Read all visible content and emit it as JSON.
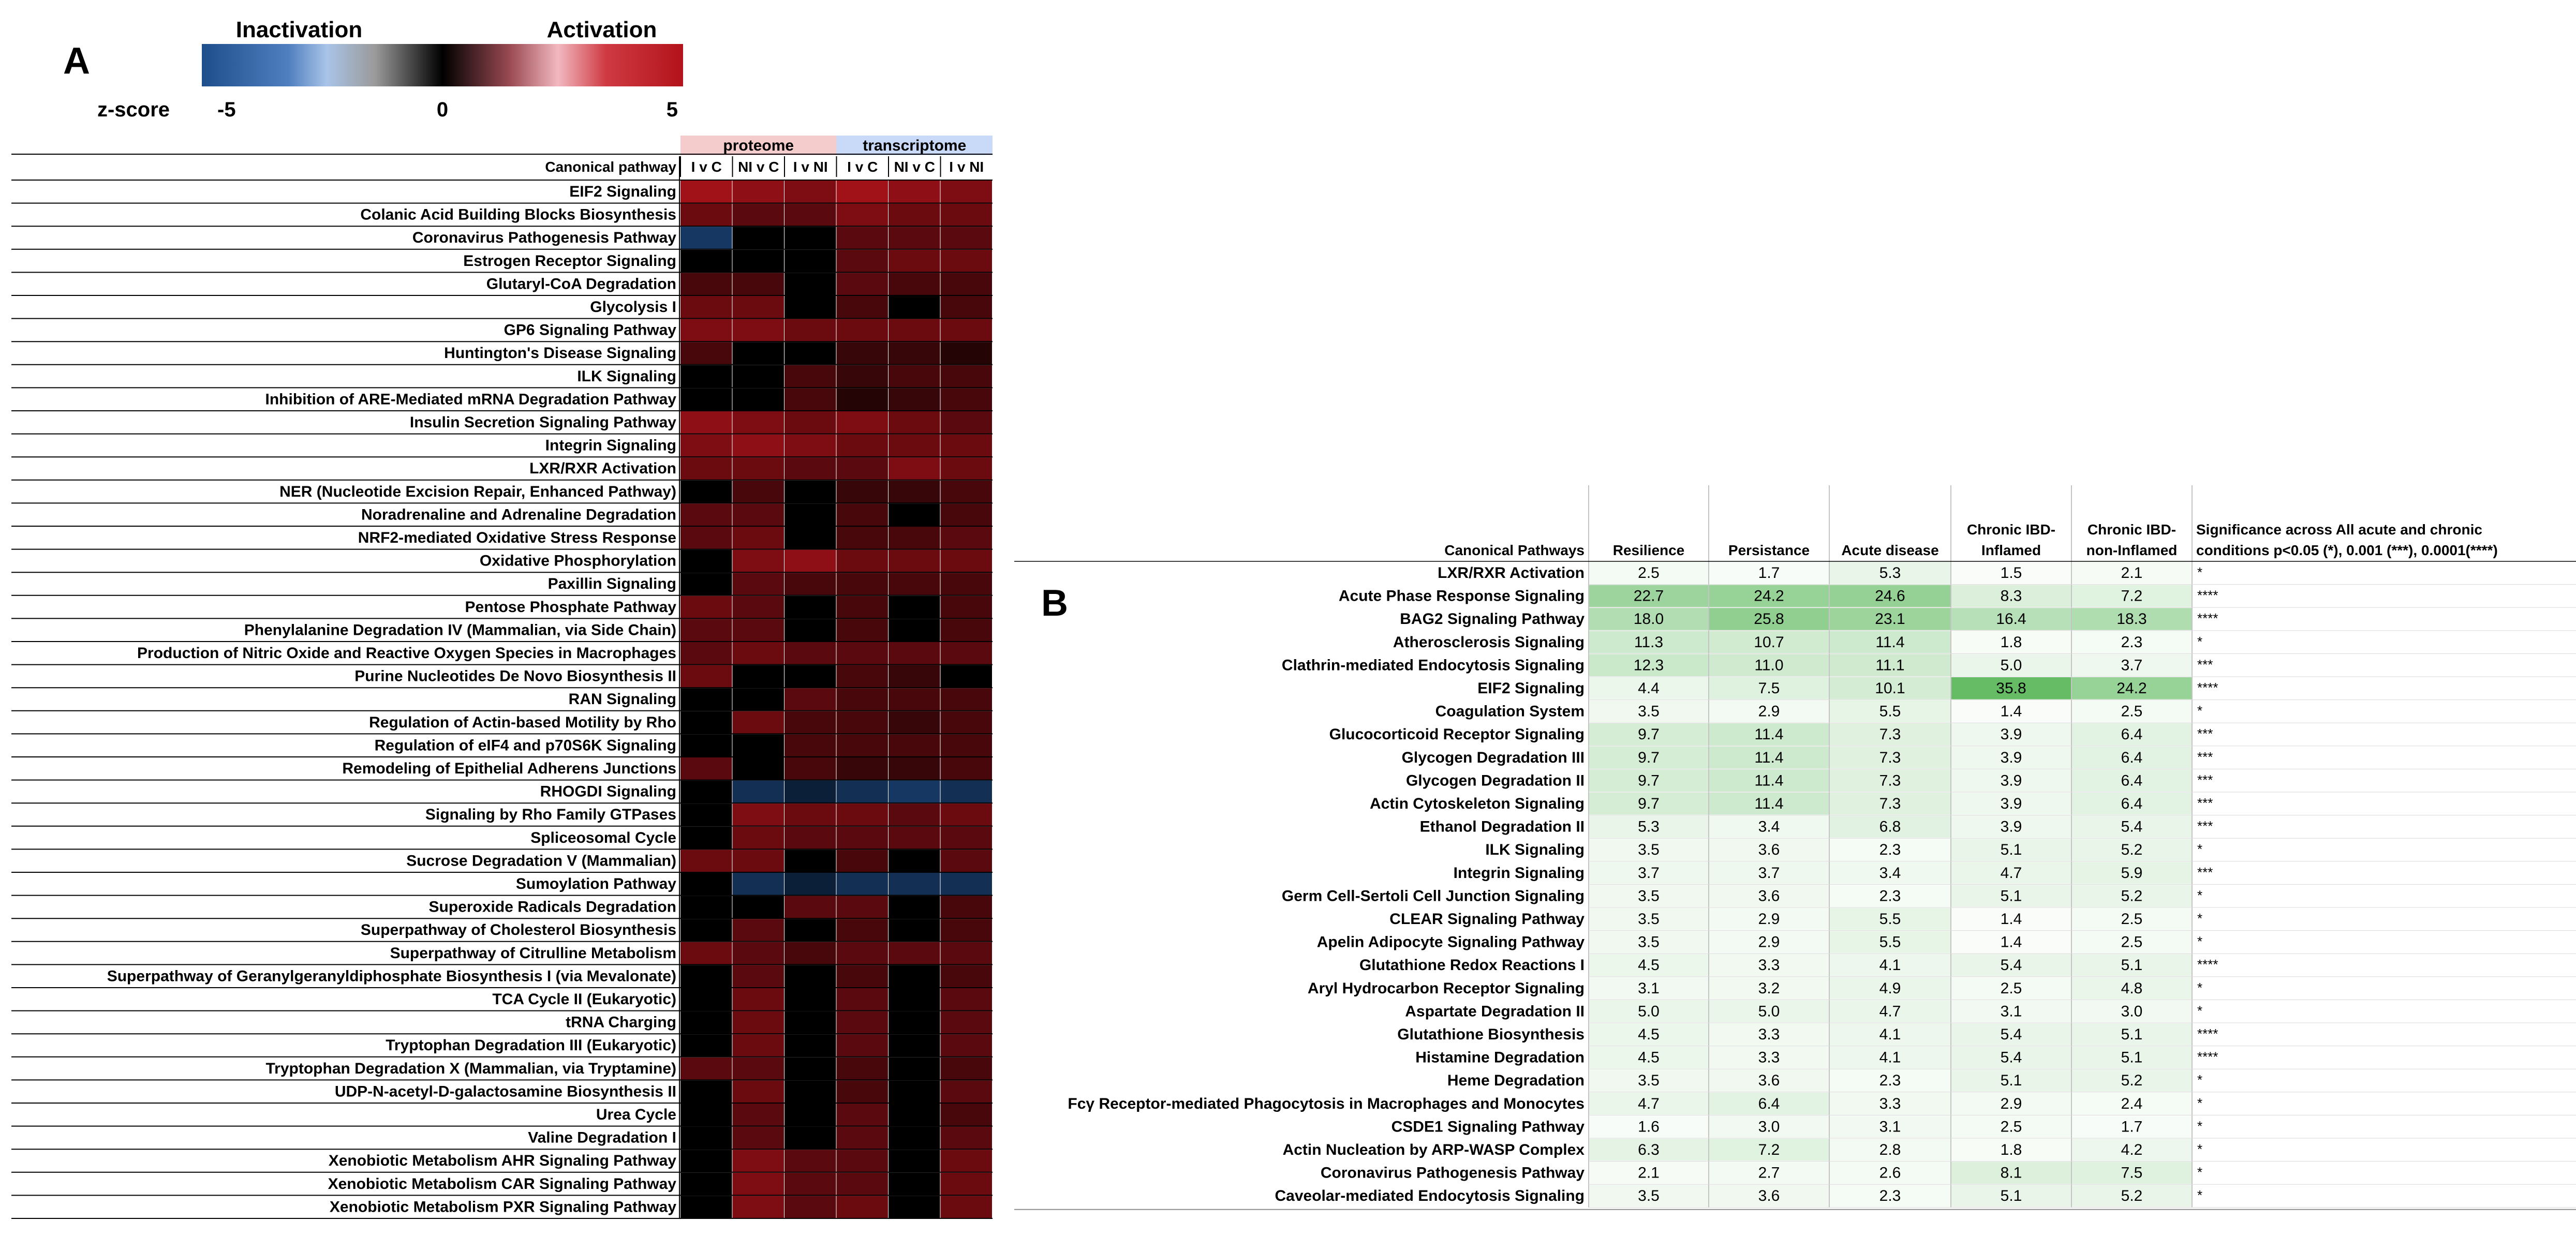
{
  "chart_data": [
    {
      "type": "heatmap",
      "panel_label": "A",
      "legend": {
        "left_label": "Inactivation",
        "right_label": "Activation",
        "scale_title": "z-score",
        "ticks": [
          "-5",
          "0",
          "5"
        ],
        "range": [
          -5,
          5
        ],
        "colors": {
          "low": "#1f4e8c",
          "mid": "#000000",
          "high": "#b3131b"
        }
      },
      "row_header": "Canonical pathway",
      "groups": [
        {
          "name": "proteome",
          "color": "#f4cccc",
          "columns": [
            "I v C",
            "NI v C",
            "I v NI"
          ]
        },
        {
          "name": "transcriptome",
          "color": "#c9daf8",
          "columns": [
            "I v C",
            "NI v C",
            "I v NI"
          ]
        }
      ],
      "rows": [
        {
          "pathway": "EIF2 Signaling",
          "z": [
            4.5,
            4,
            3.5,
            4.5,
            4,
            3.5
          ]
        },
        {
          "pathway": "Colanic Acid Building Blocks Biosynthesis",
          "z": [
            3,
            2.5,
            2.5,
            3.5,
            3,
            3
          ]
        },
        {
          "pathway": "Coronavirus Pathogenesis Pathway",
          "z": [
            -3.5,
            0,
            0,
            2.5,
            2.5,
            2.5
          ]
        },
        {
          "pathway": "Estrogen Receptor Signaling",
          "z": [
            0,
            0,
            0,
            2.5,
            3,
            3
          ]
        },
        {
          "pathway": "Glutaryl-CoA Degradation",
          "z": [
            2,
            2,
            0,
            2.5,
            2,
            2
          ]
        },
        {
          "pathway": "Glycolysis I",
          "z": [
            3,
            3,
            0,
            2,
            0,
            2
          ]
        },
        {
          "pathway": "GP6 Signaling Pathway",
          "z": [
            3.5,
            3.5,
            3,
            3,
            3,
            3
          ]
        },
        {
          "pathway": "Huntington's Disease Signaling",
          "z": [
            2,
            0,
            0,
            1.5,
            1.5,
            1
          ]
        },
        {
          "pathway": "ILK Signaling",
          "z": [
            0,
            0,
            2,
            1.5,
            2,
            2
          ]
        },
        {
          "pathway": "Inhibition of ARE-Mediated mRNA Degradation Pathway",
          "z": [
            0,
            0,
            2,
            1,
            1.5,
            2
          ]
        },
        {
          "pathway": "Insulin Secretion Signaling Pathway",
          "z": [
            4,
            3.5,
            3,
            3.5,
            3,
            2.5
          ]
        },
        {
          "pathway": "Integrin Signaling",
          "z": [
            3.5,
            4,
            3.5,
            3,
            3,
            3
          ]
        },
        {
          "pathway": "LXR/RXR Activation",
          "z": [
            3,
            3,
            2.5,
            2.5,
            3.5,
            3
          ]
        },
        {
          "pathway": "NER (Nucleotide Excision Repair, Enhanced Pathway)",
          "z": [
            0,
            2,
            0,
            1.5,
            1.5,
            2
          ]
        },
        {
          "pathway": "Noradrenaline and Adrenaline Degradation",
          "z": [
            2.5,
            2.5,
            0,
            2,
            0,
            2
          ]
        },
        {
          "pathway": "NRF2-mediated Oxidative Stress Response",
          "z": [
            2.5,
            3,
            0,
            2,
            2,
            2.5
          ]
        },
        {
          "pathway": "Oxidative Phosphorylation",
          "z": [
            0,
            3.5,
            4,
            3,
            3,
            3
          ]
        },
        {
          "pathway": "Paxillin Signaling",
          "z": [
            0,
            2.5,
            2,
            2,
            2,
            2
          ]
        },
        {
          "pathway": "Pentose Phosphate Pathway",
          "z": [
            3,
            2.5,
            0,
            2,
            0,
            2
          ]
        },
        {
          "pathway": "Phenylalanine Degradation IV (Mammalian, via Side Chain)",
          "z": [
            2.5,
            2.5,
            0,
            2,
            0,
            2
          ]
        },
        {
          "pathway": "Production of Nitric Oxide and Reactive Oxygen Species in Macrophages",
          "z": [
            2.5,
            3,
            2.5,
            2.5,
            2.5,
            2.5
          ]
        },
        {
          "pathway": "Purine Nucleotides De Novo Biosynthesis II",
          "z": [
            3,
            0,
            0,
            2,
            1.5,
            0
          ]
        },
        {
          "pathway": "RAN Signaling",
          "z": [
            0,
            0,
            2.5,
            2,
            2,
            2
          ]
        },
        {
          "pathway": "Regulation of Actin-based Motility by Rho",
          "z": [
            0,
            3,
            2,
            2,
            1.5,
            2
          ]
        },
        {
          "pathway": "Regulation of eIF4 and p70S6K Signaling",
          "z": [
            0,
            0,
            2,
            2,
            2,
            2
          ]
        },
        {
          "pathway": "Remodeling of Epithelial Adherens Junctions",
          "z": [
            2.5,
            0,
            2,
            1.5,
            1.5,
            2
          ]
        },
        {
          "pathway": "RHOGDI Signaling",
          "z": [
            0,
            -3,
            -2,
            -3,
            -3.5,
            -3
          ]
        },
        {
          "pathway": "Signaling by Rho Family GTPases",
          "z": [
            0,
            3.5,
            3,
            3,
            2.5,
            3
          ]
        },
        {
          "pathway": "Spliceosomal Cycle",
          "z": [
            0,
            3,
            2.5,
            2.5,
            2.5,
            2.5
          ]
        },
        {
          "pathway": "Sucrose Degradation V (Mammalian)",
          "z": [
            3,
            3,
            0,
            2,
            0,
            2.5
          ]
        },
        {
          "pathway": "Sumoylation Pathway",
          "z": [
            0,
            -3,
            -2,
            -3,
            -3,
            -3
          ]
        },
        {
          "pathway": "Superoxide Radicals Degradation",
          "z": [
            0,
            0,
            2.5,
            2.5,
            0,
            2
          ]
        },
        {
          "pathway": "Superpathway of Cholesterol Biosynthesis",
          "z": [
            0,
            2.5,
            0,
            2,
            0,
            2
          ]
        },
        {
          "pathway": "Superpathway of Citrulline Metabolism",
          "z": [
            3,
            2.5,
            2,
            2.5,
            2.5,
            2.5
          ]
        },
        {
          "pathway": "Superpathway of Geranylgeranyldiphosphate Biosynthesis I (via Mevalonate)",
          "z": [
            0,
            2.5,
            0,
            2,
            0,
            2
          ]
        },
        {
          "pathway": "TCA Cycle II (Eukaryotic)",
          "z": [
            0,
            3,
            0,
            2.5,
            0,
            2.5
          ]
        },
        {
          "pathway": "tRNA Charging",
          "z": [
            0,
            3,
            0,
            2.5,
            0,
            2.5
          ]
        },
        {
          "pathway": "Tryptophan Degradation III (Eukaryotic)",
          "z": [
            0,
            3,
            0,
            2.5,
            0,
            2.5
          ]
        },
        {
          "pathway": "Tryptophan Degradation X (Mammalian, via Tryptamine)",
          "z": [
            2.5,
            2.5,
            0,
            2,
            0,
            2
          ]
        },
        {
          "pathway": "UDP-N-acetyl-D-galactosamine Biosynthesis II",
          "z": [
            0,
            3,
            0,
            2,
            0,
            2.5
          ]
        },
        {
          "pathway": "Urea Cycle",
          "z": [
            0,
            2.5,
            0,
            2.5,
            0,
            2
          ]
        },
        {
          "pathway": "Valine Degradation I",
          "z": [
            0,
            2.5,
            0,
            2.5,
            0,
            2.5
          ]
        },
        {
          "pathway": "Xenobiotic Metabolism AHR Signaling Pathway",
          "z": [
            0,
            3.5,
            2.5,
            2.5,
            0,
            3
          ]
        },
        {
          "pathway": "Xenobiotic Metabolism CAR Signaling Pathway",
          "z": [
            0,
            3.5,
            2.5,
            2.5,
            0,
            3
          ]
        },
        {
          "pathway": "Xenobiotic Metabolism PXR Signaling Pathway",
          "z": [
            0,
            3.5,
            2.5,
            3,
            0,
            3
          ]
        }
      ]
    },
    {
      "type": "table",
      "panel_label": "B",
      "columns": [
        "Canonical Pathways",
        "Resilience",
        "Persistance",
        "Acute disease",
        "Chronic IBD-Inflamed",
        "Chronic IBD-non-Inflamed",
        "Significance across All acute and chronic conditions  p<0.05 (*), 0.001 (***), 0.0001(****)"
      ],
      "header_lines": [
        [
          "Canonical Pathways"
        ],
        [
          "Resilience"
        ],
        [
          "Persistance"
        ],
        [
          "Acute disease"
        ],
        [
          "Chronic IBD-",
          "Inflamed"
        ],
        [
          "Chronic IBD-",
          "non-Inflamed"
        ],
        [
          "Significance across All acute and chronic",
          "conditions  p<0.05 (*), 0.001 (***), 0.0001(****)"
        ]
      ],
      "scale_color": "#5cb85c",
      "rows": [
        {
          "pathway": "LXR/RXR Activation",
          "values": [
            2.5,
            1.7,
            5.3,
            1.5,
            2.1
          ],
          "sig": "*"
        },
        {
          "pathway": "Acute Phase Response Signaling",
          "values": [
            22.7,
            24.2,
            24.6,
            8.3,
            7.2
          ],
          "sig": "****"
        },
        {
          "pathway": "BAG2 Signaling Pathway",
          "values": [
            18.0,
            25.8,
            23.1,
            16.4,
            18.3
          ],
          "sig": "****"
        },
        {
          "pathway": "Atherosclerosis Signaling",
          "values": [
            11.3,
            10.7,
            11.4,
            1.8,
            2.3
          ],
          "sig": "*"
        },
        {
          "pathway": "Clathrin-mediated Endocytosis Signaling",
          "values": [
            12.3,
            11.0,
            11.1,
            5.0,
            3.7
          ],
          "sig": "***"
        },
        {
          "pathway": "EIF2 Signaling",
          "values": [
            4.4,
            7.5,
            10.1,
            35.8,
            24.2
          ],
          "sig": "****"
        },
        {
          "pathway": "Coagulation System",
          "values": [
            3.5,
            2.9,
            5.5,
            1.4,
            2.5
          ],
          "sig": "*"
        },
        {
          "pathway": "Glucocorticoid Receptor Signaling",
          "values": [
            9.7,
            11.4,
            7.3,
            3.9,
            6.4
          ],
          "sig": "***"
        },
        {
          "pathway": "Glycogen Degradation III",
          "values": [
            9.7,
            11.4,
            7.3,
            3.9,
            6.4
          ],
          "sig": "***"
        },
        {
          "pathway": "Glycogen Degradation II",
          "values": [
            9.7,
            11.4,
            7.3,
            3.9,
            6.4
          ],
          "sig": "***"
        },
        {
          "pathway": "Actin Cytoskeleton Signaling",
          "values": [
            9.7,
            11.4,
            7.3,
            3.9,
            6.4
          ],
          "sig": "***"
        },
        {
          "pathway": "Ethanol Degradation II",
          "values": [
            5.3,
            3.4,
            6.8,
            3.9,
            5.4
          ],
          "sig": "***"
        },
        {
          "pathway": "ILK Signaling",
          "values": [
            3.5,
            3.6,
            2.3,
            5.1,
            5.2
          ],
          "sig": "*"
        },
        {
          "pathway": "Integrin Signaling",
          "values": [
            3.7,
            3.7,
            3.4,
            4.7,
            5.9
          ],
          "sig": "***"
        },
        {
          "pathway": "Germ Cell-Sertoli Cell Junction Signaling",
          "values": [
            3.5,
            3.6,
            2.3,
            5.1,
            5.2
          ],
          "sig": "*"
        },
        {
          "pathway": "CLEAR Signaling Pathway",
          "values": [
            3.5,
            2.9,
            5.5,
            1.4,
            2.5
          ],
          "sig": "*"
        },
        {
          "pathway": "Apelin Adipocyte Signaling Pathway",
          "values": [
            3.5,
            2.9,
            5.5,
            1.4,
            2.5
          ],
          "sig": "*"
        },
        {
          "pathway": "Glutathione Redox Reactions I",
          "values": [
            4.5,
            3.3,
            4.1,
            5.4,
            5.1
          ],
          "sig": "****"
        },
        {
          "pathway": "Aryl Hydrocarbon Receptor Signaling",
          "values": [
            3.1,
            3.2,
            4.9,
            2.5,
            4.8
          ],
          "sig": "*"
        },
        {
          "pathway": "Aspartate Degradation II",
          "values": [
            5.0,
            5.0,
            4.7,
            3.1,
            3.0
          ],
          "sig": "*"
        },
        {
          "pathway": "Glutathione Biosynthesis",
          "values": [
            4.5,
            3.3,
            4.1,
            5.4,
            5.1
          ],
          "sig": "****"
        },
        {
          "pathway": "Histamine Degradation",
          "values": [
            4.5,
            3.3,
            4.1,
            5.4,
            5.1
          ],
          "sig": "****"
        },
        {
          "pathway": "Heme Degradation",
          "values": [
            3.5,
            3.6,
            2.3,
            5.1,
            5.2
          ],
          "sig": "*"
        },
        {
          "pathway": "Fcγ Receptor-mediated Phagocytosis in Macrophages and Monocytes",
          "values": [
            4.7,
            6.4,
            3.3,
            2.9,
            2.4
          ],
          "sig": "*"
        },
        {
          "pathway": "CSDE1 Signaling Pathway",
          "values": [
            1.6,
            3.0,
            3.1,
            2.5,
            1.7
          ],
          "sig": "*"
        },
        {
          "pathway": "Actin Nucleation by ARP-WASP Complex",
          "values": [
            6.3,
            7.2,
            2.8,
            1.8,
            4.2
          ],
          "sig": "*"
        },
        {
          "pathway": "Coronavirus Pathogenesis Pathway",
          "values": [
            2.1,
            2.7,
            2.6,
            8.1,
            7.5
          ],
          "sig": "*"
        },
        {
          "pathway": "Caveolar-mediated Endocytosis Signaling",
          "values": [
            3.5,
            3.6,
            2.3,
            5.1,
            5.2
          ],
          "sig": "*"
        }
      ]
    }
  ]
}
